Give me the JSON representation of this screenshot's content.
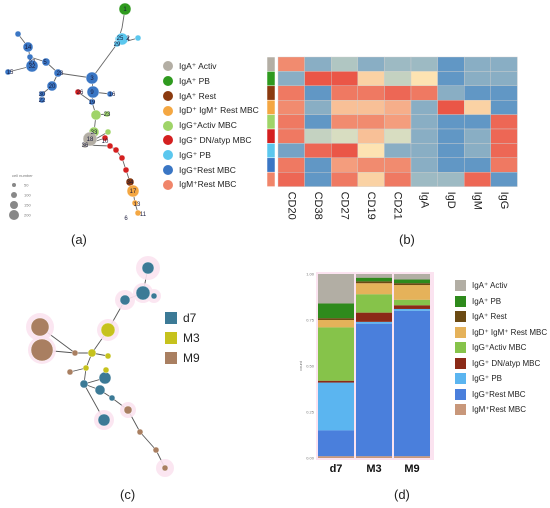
{
  "panel_labels": [
    "(a)",
    "(b)",
    "(c)",
    "(d)"
  ],
  "legend_a": {
    "items": [
      {
        "label": "IgA⁺ Activ",
        "color": "#b3aea4"
      },
      {
        "label": "IgA⁺ PB",
        "color": "#2f9a1f"
      },
      {
        "label": "IgA⁺ Rest",
        "color": "#8b3a0f"
      },
      {
        "label": "IgD⁺ IgM⁺ Rest MBC",
        "color": "#f4a742"
      },
      {
        "label": "IgG⁺Activ MBC",
        "color": "#9fd468"
      },
      {
        "label": "IgG⁺ DN/atyp MBC",
        "color": "#d42020"
      },
      {
        "label": "IgG⁺ PB",
        "color": "#5bc7ee"
      },
      {
        "label": "IgG⁺Rest MBC",
        "color": "#3a76c4"
      },
      {
        "label": "IgM⁺Rest MBC",
        "color": "#f0856a"
      }
    ],
    "size_title": "cell number",
    "size_values": [
      "50",
      "100",
      "150",
      "200"
    ]
  },
  "tree_nodes": [
    "1",
    "2",
    "3",
    "4",
    "5",
    "6",
    "9",
    "10",
    "11",
    "13",
    "14",
    "15",
    "16",
    "17",
    "18",
    "19",
    "20",
    "22",
    "23",
    "25",
    "26",
    "27",
    "28",
    "29",
    "30",
    "32",
    "33",
    "34",
    "36"
  ],
  "chart_data": [
    {
      "type": "heatmap",
      "title": "",
      "columns": [
        "CD20",
        "CD38",
        "CD27",
        "CD19",
        "CD21",
        "IgA",
        "IgD",
        "IgM",
        "IgG"
      ],
      "row_colors": [
        "#b3aea4",
        "#2f9a1f",
        "#8b3a0f",
        "#f4a742",
        "#9fd468",
        "#d42020",
        "#5bc7ee",
        "#3a76c4",
        "#f0856a"
      ],
      "palette": {
        "high": "#e8443a",
        "mid": "#fff5bf",
        "low": "#3a7fc7"
      },
      "values": [
        [
          0.6,
          -0.6,
          -0.4,
          -0.6,
          -0.5,
          -0.5,
          -0.8,
          -0.6,
          -0.6
        ],
        [
          -0.6,
          0.9,
          0.9,
          0.2,
          -0.3,
          0.1,
          -0.8,
          -0.6,
          -0.6
        ],
        [
          0.7,
          -0.8,
          0.7,
          0.7,
          0.8,
          0.7,
          -0.6,
          -0.8,
          -0.8
        ],
        [
          0.6,
          -0.6,
          0.3,
          0.3,
          0.4,
          -0.6,
          0.9,
          0.2,
          -0.8
        ],
        [
          0.7,
          -0.8,
          0.6,
          0.6,
          0.5,
          -0.6,
          -0.8,
          -0.8,
          0.8
        ],
        [
          0.7,
          -0.3,
          -0.2,
          0.3,
          -0.2,
          -0.6,
          -0.8,
          -0.6,
          0.8
        ],
        [
          -0.7,
          0.8,
          0.9,
          0.1,
          -0.6,
          -0.6,
          -0.8,
          -0.6,
          0.8
        ],
        [
          0.7,
          -0.8,
          0.5,
          0.6,
          0.6,
          -0.6,
          -0.8,
          -0.8,
          0.7
        ],
        [
          0.8,
          -0.8,
          0.7,
          0.2,
          0.7,
          -0.5,
          -0.5,
          0.8,
          -0.8
        ]
      ]
    },
    {
      "type": "bar",
      "title": "",
      "xlabel": "",
      "ylabel": "count",
      "categories": [
        "d7",
        "M3",
        "M9"
      ],
      "yticks": [
        "0.00",
        "0.25",
        "0.50",
        "0.75",
        "1.00"
      ],
      "ylim": [
        0,
        1
      ],
      "series": [
        {
          "name": "IgM⁺Rest MBC",
          "color": "#c8977a",
          "values": [
            0.01,
            0.01,
            0.01
          ]
        },
        {
          "name": "IgG⁺Rest MBC",
          "color": "#4a7fdc",
          "values": [
            0.14,
            0.72,
            0.79
          ]
        },
        {
          "name": "IgG⁺ PB",
          "color": "#5bb5f0",
          "values": [
            0.26,
            0.01,
            0.01
          ]
        },
        {
          "name": "IgG⁺ DN/atyp MBC",
          "color": "#8b2a17",
          "values": [
            0.01,
            0.05,
            0.02
          ]
        },
        {
          "name": "IgG⁺Activ MBC",
          "color": "#86c34a",
          "values": [
            0.29,
            0.1,
            0.03
          ]
        },
        {
          "name": "IgD⁺ IgM⁺ Rest MBC",
          "color": "#e5b25a",
          "values": [
            0.04,
            0.06,
            0.08
          ]
        },
        {
          "name": "IgA⁺ Rest",
          "color": "#6b4a13",
          "values": [
            0.01,
            0.01,
            0.01
          ]
        },
        {
          "name": "IgA⁺ PB",
          "color": "#2e8a1c",
          "values": [
            0.08,
            0.02,
            0.02
          ]
        },
        {
          "name": "IgA⁺ Activ",
          "color": "#b2aea4",
          "values": [
            0.16,
            0.02,
            0.03
          ]
        }
      ]
    }
  ],
  "legend_c": [
    {
      "label": "d7",
      "color": "#3c7a96"
    },
    {
      "label": "M3",
      "color": "#c6c21d"
    },
    {
      "label": "M9",
      "color": "#a97f61"
    }
  ],
  "legend_d": [
    {
      "label": "IgA⁺ Activ",
      "color": "#b2aea4"
    },
    {
      "label": "IgA⁺ PB",
      "color": "#2e8a1c"
    },
    {
      "label": "IgA⁺ Rest",
      "color": "#6b4a13"
    },
    {
      "label": "IgD⁺ IgM⁺ Rest MBC",
      "color": "#e5b25a"
    },
    {
      "label": "IgG⁺Activ MBC",
      "color": "#86c34a"
    },
    {
      "label": "IgG⁺ DN/atyp MBC",
      "color": "#8b2a17"
    },
    {
      "label": "IgG⁺ PB",
      "color": "#5bb5f0"
    },
    {
      "label": "IgG⁺Rest MBC",
      "color": "#4a7fdc"
    },
    {
      "label": "IgM⁺Rest MBC",
      "color": "#c8977a"
    }
  ]
}
